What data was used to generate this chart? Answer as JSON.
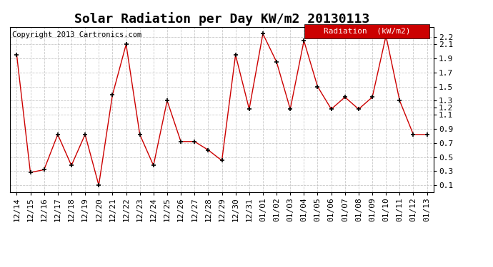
{
  "title": "Solar Radiation per Day KW/m2 20130113",
  "copyright": "Copyright 2013 Cartronics.com",
  "legend_label": "Radiation  (kW/m2)",
  "dates": [
    "12/14",
    "12/15",
    "12/16",
    "12/17",
    "12/18",
    "12/19",
    "12/20",
    "12/21",
    "12/22",
    "12/23",
    "12/24",
    "12/25",
    "12/26",
    "12/27",
    "12/28",
    "12/29",
    "12/30",
    "12/31",
    "01/01",
    "01/02",
    "01/03",
    "01/04",
    "01/05",
    "01/06",
    "01/07",
    "01/08",
    "01/09",
    "01/10",
    "01/11",
    "01/12",
    "01/13"
  ],
  "values": [
    1.95,
    0.28,
    0.32,
    0.82,
    0.38,
    0.82,
    0.1,
    1.38,
    2.1,
    0.82,
    0.38,
    1.3,
    0.72,
    0.72,
    0.6,
    0.45,
    1.95,
    1.18,
    2.25,
    1.85,
    1.18,
    2.15,
    1.5,
    1.18,
    1.35,
    1.18,
    1.35,
    2.22,
    1.3,
    0.82,
    0.82
  ],
  "line_color": "#cc0000",
  "marker_color": "#000000",
  "background_color": "#ffffff",
  "grid_color": "#bbbbbb",
  "ylim_min": 0.0,
  "ylim_max": 2.35,
  "yticks": [
    0.1,
    0.3,
    0.4,
    0.5,
    0.6,
    0.7,
    0.8,
    0.9,
    1.0,
    1.1,
    1.2,
    1.3,
    1.5,
    1.7,
    1.9,
    2.1,
    2.2
  ],
  "ytick_labels": [
    "0.1",
    "0.3",
    "",
    "0.5",
    "",
    "0.7",
    "",
    "0.9",
    "",
    "1.1",
    "1.2",
    "1.3",
    "1.5",
    "1.7",
    "1.9",
    "2.1",
    "2.2"
  ],
  "legend_bg": "#cc0000",
  "legend_text_color": "#ffffff",
  "title_fontsize": 13,
  "tick_fontsize": 8,
  "copyright_fontsize": 7.5
}
